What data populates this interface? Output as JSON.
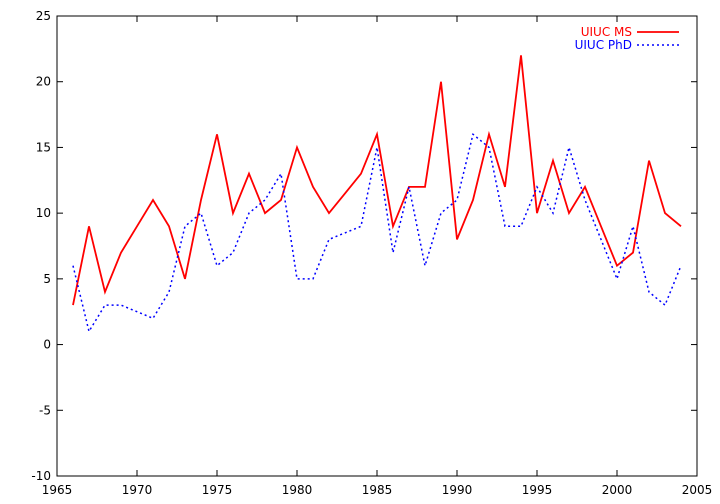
{
  "chart_data": {
    "type": "line",
    "title": "",
    "xlabel": "",
    "ylabel": "",
    "xlim": [
      1965,
      2005
    ],
    "ylim": [
      -10,
      25
    ],
    "xticks": [
      1965,
      1970,
      1975,
      1980,
      1985,
      1990,
      1995,
      2000,
      2005
    ],
    "yticks": [
      -10,
      -5,
      0,
      5,
      10,
      15,
      20,
      25
    ],
    "grid": false,
    "legend_position": "top-right",
    "series": [
      {
        "name": "UIUC MS",
        "color": "#ff0000",
        "style": "solid",
        "x": [
          1966,
          1967,
          1968,
          1969,
          1970,
          1971,
          1972,
          1973,
          1974,
          1975,
          1976,
          1977,
          1978,
          1979,
          1980,
          1981,
          1982,
          1983,
          1984,
          1985,
          1986,
          1987,
          1988,
          1989,
          1990,
          1991,
          1992,
          1993,
          1994,
          1995,
          1996,
          1997,
          1998,
          1999,
          2000,
          2001,
          2002,
          2003,
          2004
        ],
        "values": [
          3,
          9,
          4,
          7,
          9,
          11,
          9,
          5,
          11,
          16,
          10,
          13,
          10,
          11,
          15,
          12,
          10,
          11.5,
          13,
          16,
          9,
          12,
          12,
          20,
          8,
          11,
          16,
          12,
          22,
          10,
          14,
          10,
          12,
          9,
          6,
          7,
          14,
          10,
          9
        ]
      },
      {
        "name": "UIUC PhD",
        "color": "#0000ff",
        "style": "dotted",
        "x": [
          1966,
          1967,
          1968,
          1969,
          1970,
          1971,
          1972,
          1973,
          1974,
          1975,
          1976,
          1977,
          1978,
          1979,
          1980,
          1981,
          1982,
          1983,
          1984,
          1985,
          1986,
          1987,
          1988,
          1989,
          1990,
          1991,
          1992,
          1993,
          1994,
          1995,
          1996,
          1997,
          1998,
          1999,
          2000,
          2001,
          2002,
          2003,
          2004
        ],
        "values": [
          6,
          1,
          3,
          3,
          2.5,
          2,
          4,
          9,
          10,
          6,
          7,
          10,
          11,
          13,
          5,
          5,
          8,
          8.5,
          9,
          15,
          7,
          12,
          6,
          10,
          11,
          16,
          15,
          9,
          9,
          12,
          10,
          15,
          11,
          8,
          5,
          9,
          4,
          3,
          6
        ]
      }
    ]
  }
}
